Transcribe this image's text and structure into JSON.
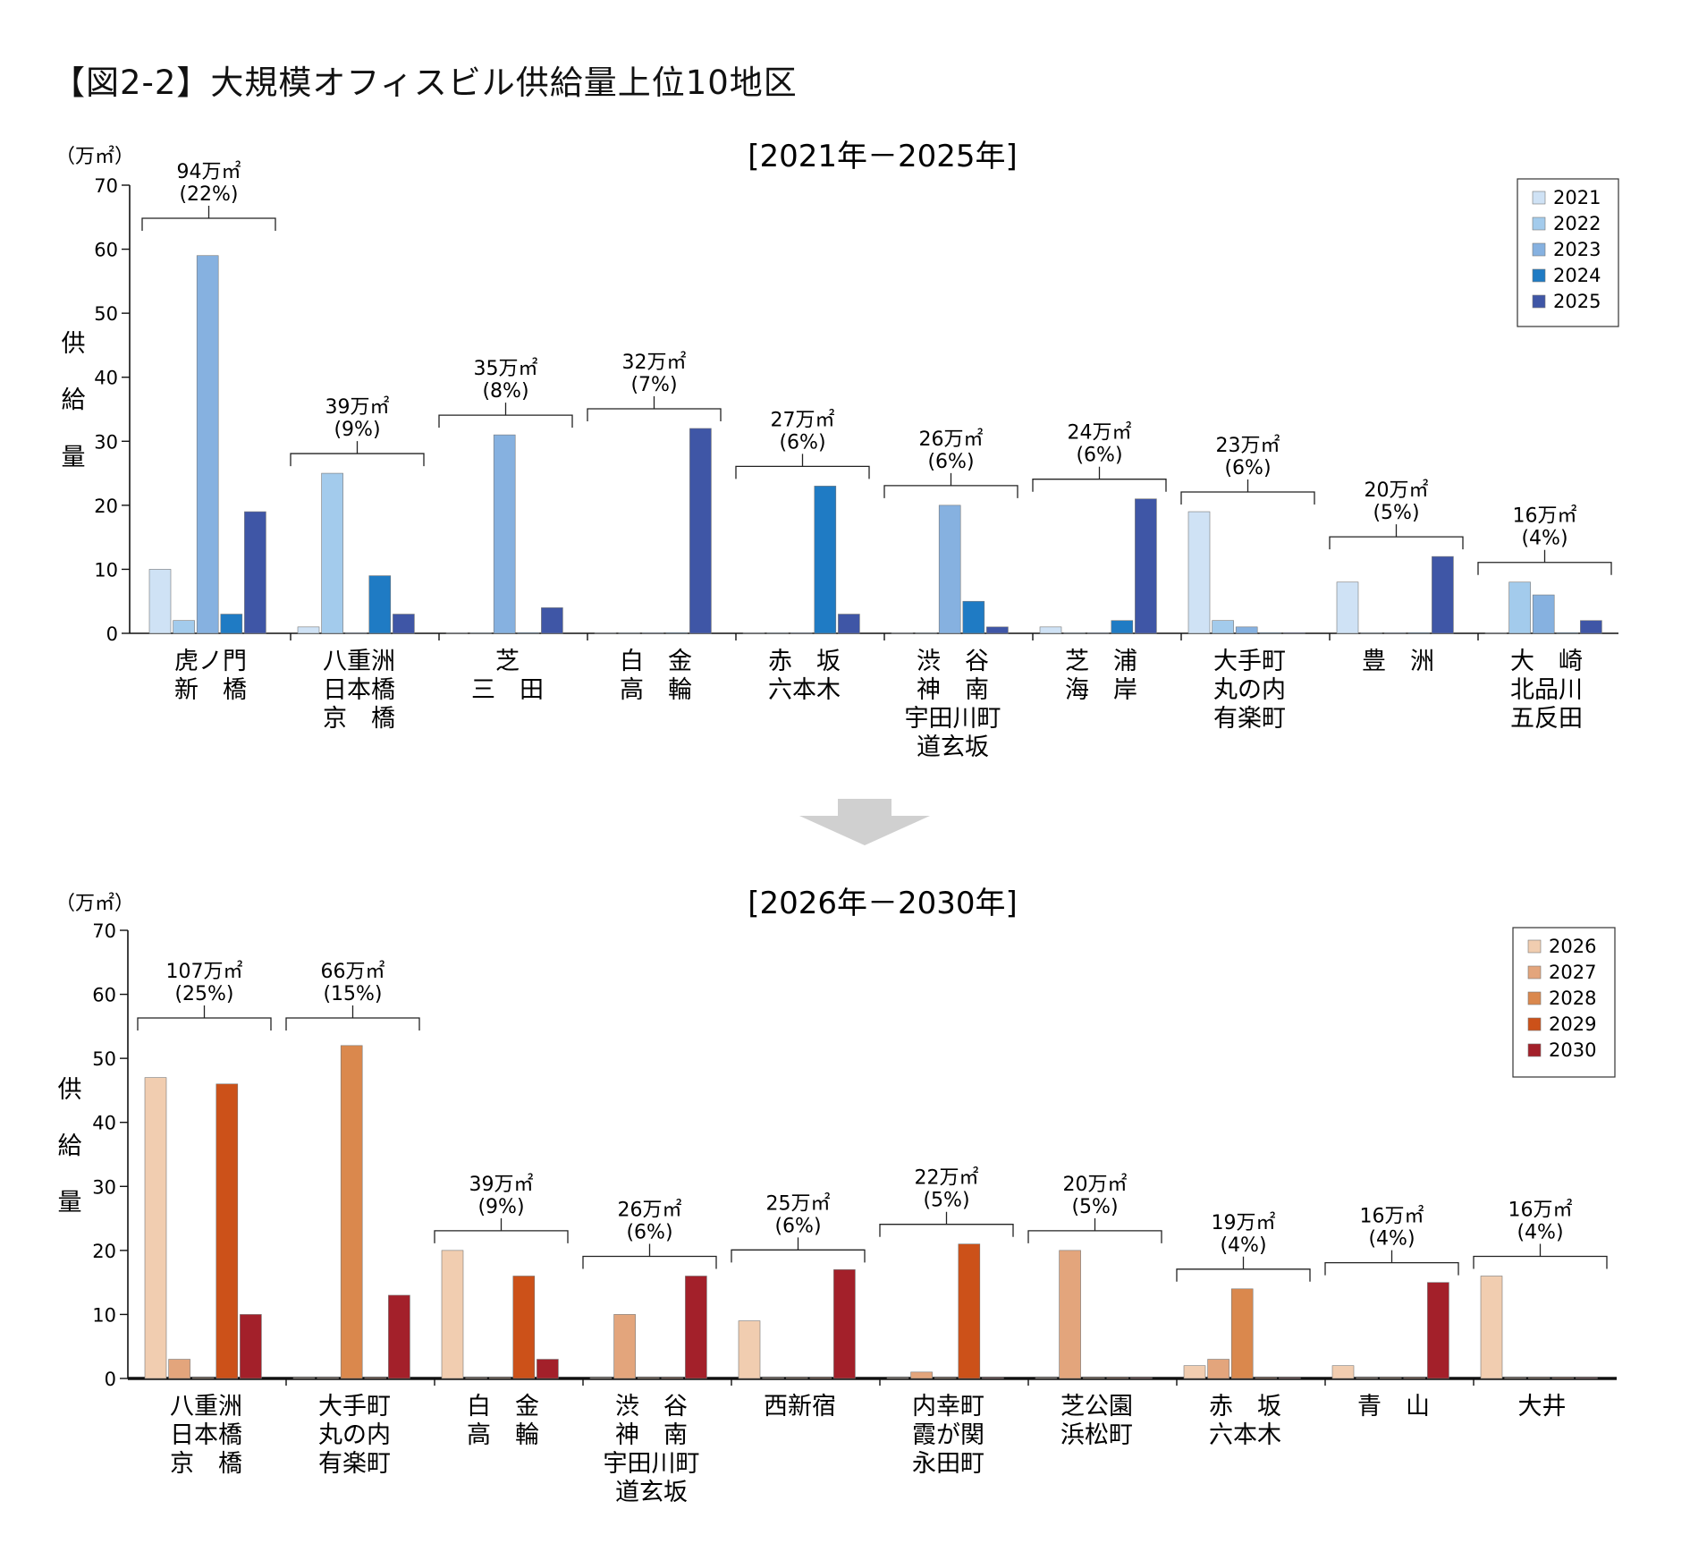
{
  "figure_title": "【図2-2】大規模オフィスビル供給量上位10地区",
  "arrow_color": "#d0d0d0",
  "chart_data": [
    {
      "type": "bar",
      "title": "[2021年－2025年]",
      "unit_label": "（万㎡）",
      "ylabel": "供給量",
      "ylim": [
        0,
        70
      ],
      "yticks": [
        0,
        10,
        20,
        30,
        40,
        50,
        60,
        70
      ],
      "legend_position": "top-right",
      "series": [
        {
          "name": "2021",
          "color": "#cfe2f5",
          "values": [
            10,
            1,
            0,
            0,
            0,
            0,
            1,
            19,
            8,
            0
          ]
        },
        {
          "name": "2022",
          "color": "#a3cbec",
          "values": [
            2,
            25,
            0,
            0,
            0,
            0,
            0,
            2,
            0,
            8
          ]
        },
        {
          "name": "2023",
          "color": "#86b1e0",
          "values": [
            59,
            0,
            31,
            0,
            0,
            20,
            0,
            1,
            0,
            6
          ]
        },
        {
          "name": "2024",
          "color": "#1f7bc4",
          "values": [
            3,
            9,
            0,
            0,
            23,
            5,
            2,
            0,
            0,
            0
          ]
        },
        {
          "name": "2025",
          "color": "#3f56a6",
          "values": [
            19,
            3,
            4,
            32,
            3,
            1,
            21,
            0,
            12,
            2
          ]
        }
      ],
      "categories": [
        {
          "lines": [
            "虎ノ門",
            "新　橋"
          ],
          "total": "94万㎡",
          "share": "(22%)"
        },
        {
          "lines": [
            "八重洲",
            "日本橋",
            "京　橋"
          ],
          "total": "39万㎡",
          "share": "(9%)"
        },
        {
          "lines": [
            "芝",
            "三　田"
          ],
          "total": "35万㎡",
          "share": "(8%)"
        },
        {
          "lines": [
            "白　金",
            "高　輪"
          ],
          "total": "32万㎡",
          "share": "(7%)"
        },
        {
          "lines": [
            "赤　坂",
            "六本木"
          ],
          "total": "27万㎡",
          "share": "(6%)"
        },
        {
          "lines": [
            "渋　谷",
            "神　南",
            "宇田川町",
            "道玄坂"
          ],
          "total": "26万㎡",
          "share": "(6%)"
        },
        {
          "lines": [
            "芝　浦",
            "海　岸"
          ],
          "total": "24万㎡",
          "share": "(6%)"
        },
        {
          "lines": [
            "大手町",
            "丸の内",
            "有楽町"
          ],
          "total": "23万㎡",
          "share": "(6%)"
        },
        {
          "lines": [
            "豊　洲"
          ],
          "total": "20万㎡",
          "share": "(5%)"
        },
        {
          "lines": [
            "大　崎",
            "北品川",
            "五反田"
          ],
          "total": "16万㎡",
          "share": "(4%)"
        }
      ]
    },
    {
      "type": "bar",
      "title": "[2026年－2030年]",
      "unit_label": "（万㎡）",
      "ylabel": "供給量",
      "ylim": [
        0,
        70
      ],
      "yticks": [
        0,
        10,
        20,
        30,
        40,
        50,
        60,
        70
      ],
      "legend_position": "top-right",
      "series": [
        {
          "name": "2026",
          "color": "#f1cdb0",
          "values": [
            47,
            0,
            20,
            0,
            9,
            0,
            0,
            2,
            2,
            16
          ]
        },
        {
          "name": "2027",
          "color": "#e3a57c",
          "values": [
            3,
            0,
            0,
            10,
            0,
            1,
            20,
            3,
            0,
            0
          ]
        },
        {
          "name": "2028",
          "color": "#da884d",
          "values": [
            0,
            52,
            0,
            0,
            0,
            0,
            0,
            14,
            0,
            0
          ]
        },
        {
          "name": "2029",
          "color": "#cc5119",
          "values": [
            46,
            0,
            16,
            0,
            0,
            21,
            0,
            0,
            0,
            0
          ]
        },
        {
          "name": "2030",
          "color": "#a3202a",
          "values": [
            10,
            13,
            3,
            16,
            17,
            0,
            0,
            0,
            15,
            0
          ]
        }
      ],
      "categories": [
        {
          "lines": [
            "八重洲",
            "日本橋",
            "京　橋"
          ],
          "total": "107万㎡",
          "share": "(25%)"
        },
        {
          "lines": [
            "大手町",
            "丸の内",
            "有楽町"
          ],
          "total": "66万㎡",
          "share": "(15%)"
        },
        {
          "lines": [
            "白　金",
            "高　輪"
          ],
          "total": "39万㎡",
          "share": "(9%)"
        },
        {
          "lines": [
            "渋　谷",
            "神　南",
            "宇田川町",
            "道玄坂"
          ],
          "total": "26万㎡",
          "share": "(6%)"
        },
        {
          "lines": [
            "西新宿"
          ],
          "total": "25万㎡",
          "share": "(6%)"
        },
        {
          "lines": [
            "内幸町",
            "霞が関",
            "永田町"
          ],
          "total": "22万㎡",
          "share": "(5%)"
        },
        {
          "lines": [
            "芝公園",
            "浜松町"
          ],
          "total": "20万㎡",
          "share": "(5%)"
        },
        {
          "lines": [
            "赤　坂",
            "六本木"
          ],
          "total": "19万㎡",
          "share": "(4%)"
        },
        {
          "lines": [
            "青　山"
          ],
          "total": "16万㎡",
          "share": "(4%)"
        },
        {
          "lines": [
            "大井"
          ],
          "total": "16万㎡",
          "share": "(4%)"
        }
      ]
    }
  ]
}
